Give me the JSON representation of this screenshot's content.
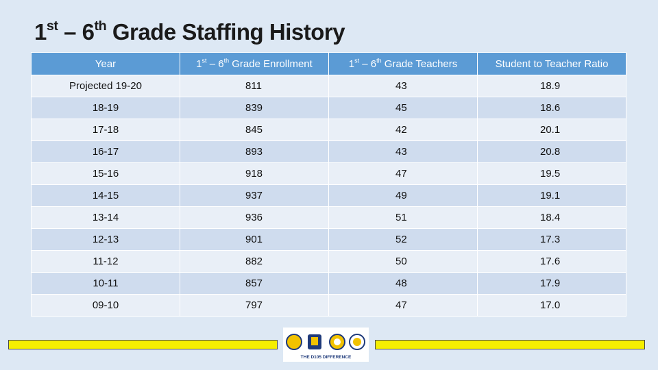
{
  "title": {
    "parts": [
      "1",
      "st",
      " – 6",
      "th",
      " Grade Staffing History"
    ]
  },
  "table": {
    "header": [
      {
        "parts": [
          "Year"
        ]
      },
      {
        "parts": [
          "1",
          "st",
          " – 6",
          "th",
          " Grade Enrollment"
        ]
      },
      {
        "parts": [
          "1",
          "st",
          " – 6",
          "th",
          " Grade Teachers"
        ]
      },
      {
        "parts": [
          "Student to Teacher Ratio"
        ]
      }
    ],
    "rows": [
      [
        "Projected 19-20",
        "811",
        "43",
        "18.9"
      ],
      [
        "18-19",
        "839",
        "45",
        "18.6"
      ],
      [
        "17-18",
        "845",
        "42",
        "20.1"
      ],
      [
        "16-17",
        "893",
        "43",
        "20.8"
      ],
      [
        "15-16",
        "918",
        "47",
        "19.5"
      ],
      [
        "14-15",
        "937",
        "49",
        "19.1"
      ],
      [
        "13-14",
        "936",
        "51",
        "18.4"
      ],
      [
        "12-13",
        "901",
        "52",
        "17.3"
      ],
      [
        "11-12",
        "882",
        "50",
        "17.6"
      ],
      [
        "10-11",
        "857",
        "48",
        "17.9"
      ],
      [
        "09-10",
        "797",
        "47",
        "17.0"
      ]
    ]
  },
  "footer": {
    "logo_text": "THE D105 DIFFERENCE"
  }
}
